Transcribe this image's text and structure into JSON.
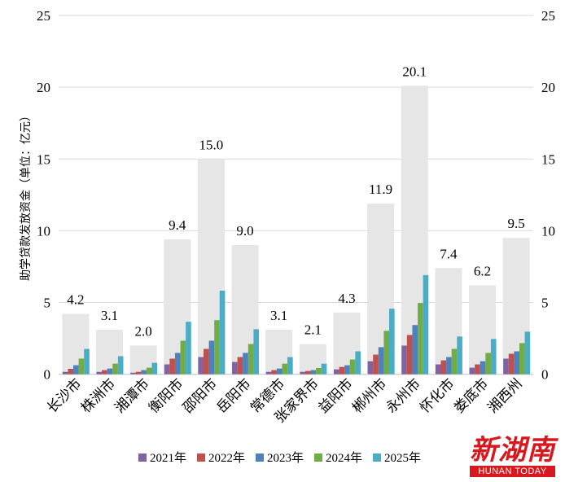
{
  "chart_data": {
    "type": "bar",
    "title": "",
    "ylabel": "助学贷款发放资金（单位：亿元）",
    "xlabel": "",
    "ylim": [
      0,
      25
    ],
    "yticks": [
      0,
      5,
      10,
      15,
      20,
      25
    ],
    "grid": true,
    "legend_position": "bottom",
    "categories": [
      "长沙市",
      "株洲市",
      "湘潭市",
      "衡阳市",
      "邵阳市",
      "岳阳市",
      "常德市",
      "张家界市",
      "益阳市",
      "郴州市",
      "永州市",
      "怀化市",
      "娄底市",
      "湘西州"
    ],
    "totals": [
      4.2,
      3.1,
      2.0,
      9.4,
      15.0,
      9.0,
      3.1,
      2.1,
      4.3,
      11.9,
      20.1,
      7.4,
      6.2,
      9.5
    ],
    "total_color": "#e6e6e6",
    "series": [
      {
        "name": "2021年",
        "color": "#8064a2",
        "values": [
          0.17,
          0.17,
          0.11,
          0.69,
          1.2,
          0.86,
          0.17,
          0.17,
          0.34,
          0.91,
          2.0,
          0.69,
          0.46,
          1.09
        ]
      },
      {
        "name": "2022年",
        "color": "#c0504d",
        "values": [
          0.38,
          0.29,
          0.17,
          1.09,
          1.77,
          1.2,
          0.29,
          0.23,
          0.51,
          1.37,
          2.74,
          0.97,
          0.69,
          1.43
        ]
      },
      {
        "name": "2023年",
        "color": "#4f81bd",
        "values": [
          0.63,
          0.4,
          0.29,
          1.49,
          2.34,
          1.49,
          0.4,
          0.29,
          0.63,
          1.89,
          3.43,
          1.2,
          0.91,
          1.6
        ]
      },
      {
        "name": "2024年",
        "color": "#70ad47",
        "values": [
          1.09,
          0.74,
          0.46,
          2.34,
          3.77,
          2.11,
          0.74,
          0.44,
          1.03,
          3.03,
          4.97,
          1.77,
          1.49,
          2.17
        ]
      },
      {
        "name": "2025年",
        "color": "#4bacc6",
        "values": [
          1.77,
          1.26,
          0.8,
          3.66,
          5.83,
          3.14,
          1.2,
          0.74,
          1.6,
          4.57,
          6.91,
          2.63,
          2.46,
          2.97
        ]
      }
    ]
  },
  "logo": {
    "cn": "新湖南",
    "en": "HUNAN TODAY"
  }
}
